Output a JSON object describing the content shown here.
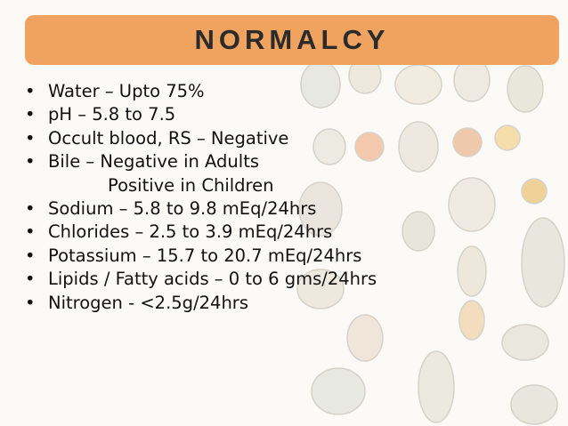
{
  "slide": {
    "title": "NORMALCY",
    "bullet_char": "•",
    "items": [
      {
        "text": "Water – Upto 75%",
        "bullet": true
      },
      {
        "text": "pH – 5.8 to 7.5",
        "bullet": true
      },
      {
        "text": "Occult blood, RS – Negative",
        "bullet": true
      },
      {
        "text": "Bile – Negative in Adults",
        "bullet": true
      },
      {
        "text": "Positive in Children",
        "bullet": false
      },
      {
        "text": "Sodium – 5.8 to 9.8 mEq/24hrs",
        "bullet": true
      },
      {
        "text": "Chlorides – 2.5 to 3.9 mEq/24hrs",
        "bullet": true
      },
      {
        "text": "Potassium – 15.7 to 20.7 mEq/24hrs",
        "bullet": true
      },
      {
        "text": "Lipids / Fatty acids – 0 to 6 gms/24hrs",
        "bullet": true
      },
      {
        "text": "Nitrogen - <2.5g/24hrs",
        "bullet": true
      }
    ]
  },
  "colors": {
    "title_bar": "#f0a35f",
    "title_text": "#2b2b2b",
    "body_text": "#111111"
  }
}
